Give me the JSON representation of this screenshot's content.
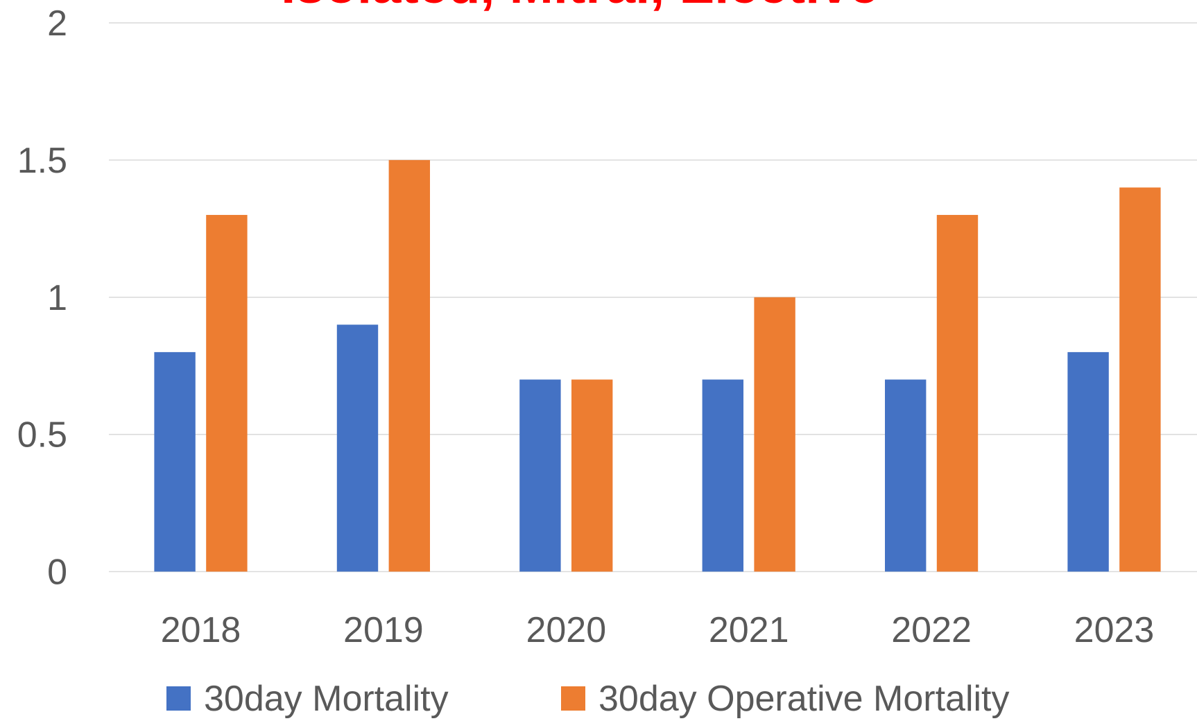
{
  "chart_data": {
    "type": "bar",
    "title": "Isolated, Mitral, Elective",
    "categories": [
      "2018",
      "2019",
      "2020",
      "2021",
      "2022",
      "2023"
    ],
    "series": [
      {
        "name": "30day Mortality",
        "color": "#4472c4",
        "values": [
          0.8,
          0.9,
          0.7,
          0.7,
          0.7,
          0.8
        ]
      },
      {
        "name": "30day Operative Mortality",
        "color": "#ed7d31",
        "values": [
          1.3,
          1.5,
          0.7,
          1.0,
          1.3,
          1.4
        ]
      }
    ],
    "ylim": [
      0,
      2
    ],
    "yticks": [
      0,
      0.5,
      1,
      1.5,
      2
    ],
    "grid": true,
    "legend": "bottom"
  }
}
